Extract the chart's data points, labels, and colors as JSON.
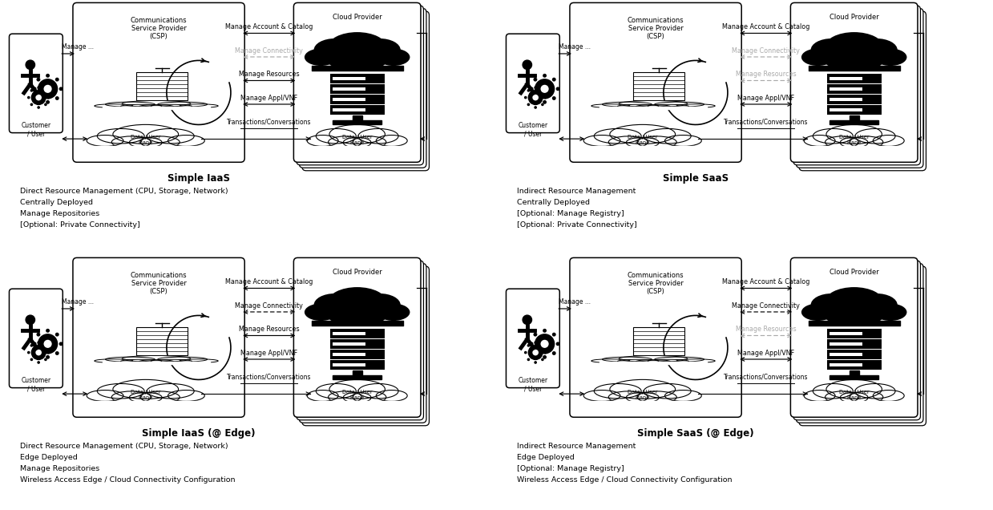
{
  "background": "#ffffff",
  "diagrams": [
    {
      "title": "Simple IaaS",
      "subtitle_lines": [
        "Direct Resource Management (CPU, Storage, Network)",
        "Centrally Deployed",
        "Manage Repositories",
        "[Optional: Private Connectivity]"
      ],
      "connectivity_gray": true,
      "resources_gray": false
    },
    {
      "title": "Simple SaaS",
      "subtitle_lines": [
        "Indirect Resource Management",
        "Centrally Deployed",
        "[Optional: Manage Registry]",
        "[Optional: Private Connectivity]"
      ],
      "connectivity_gray": true,
      "resources_gray": true
    },
    {
      "title": "Simple IaaS (@ Edge)",
      "subtitle_lines": [
        "Direct Resource Management (CPU, Storage, Network)",
        "Edge Deployed",
        "Manage Repositories",
        "Wireless Access Edge / Cloud Connectivity Configuration"
      ],
      "connectivity_gray": false,
      "resources_gray": false
    },
    {
      "title": "Simple SaaS (@ Edge)",
      "subtitle_lines": [
        "Indirect Resource Management",
        "Edge Deployed",
        "[Optional: Manage Registry]",
        "Wireless Access Edge / Cloud Connectivity Configuration"
      ],
      "connectivity_gray": false,
      "resources_gray": true
    }
  ],
  "arrow_labels": [
    "Manage Account & Catalog",
    "Manage Connectivity",
    "Manage Resources",
    "Manage Appl/VNF",
    "Transactions/Conversations"
  ]
}
